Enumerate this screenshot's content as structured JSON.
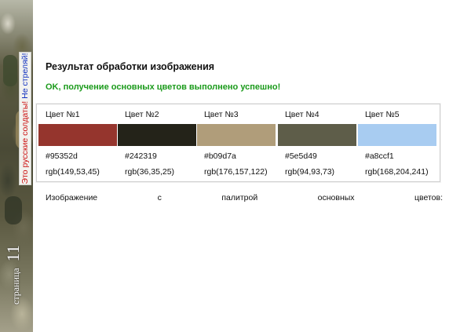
{
  "side": {
    "slogan_part1": "Это русские солдаты!",
    "slogan_part2": "Не стреляй!",
    "page_word": "страница",
    "page_number": "11"
  },
  "header": {
    "title": "Результат обработки изображения",
    "status": "OK, получение основных цветов выполнено успешно!"
  },
  "palette": [
    {
      "label": "Цвет №1",
      "hex": "#95352d",
      "rgb": "rgb(149,53,45)"
    },
    {
      "label": "Цвет №2",
      "hex": "#242319",
      "rgb": "rgb(36,35,25)"
    },
    {
      "label": "Цвет №3",
      "hex": "#b09d7a",
      "rgb": "rgb(176,157,122)"
    },
    {
      "label": "Цвет №4",
      "hex": "#5e5d49",
      "rgb": "rgb(94,93,73)"
    },
    {
      "label": "Цвет №5",
      "hex": "#a8ccf1",
      "rgb": "rgb(168,204,241)"
    }
  ],
  "caption_words": [
    "Изображение",
    "с",
    "палитрой",
    "основных",
    "цветов:"
  ],
  "colors": {
    "status_green": "#1a9a1a",
    "slogan_red": "#cc1010",
    "slogan_blue": "#1030c0"
  }
}
